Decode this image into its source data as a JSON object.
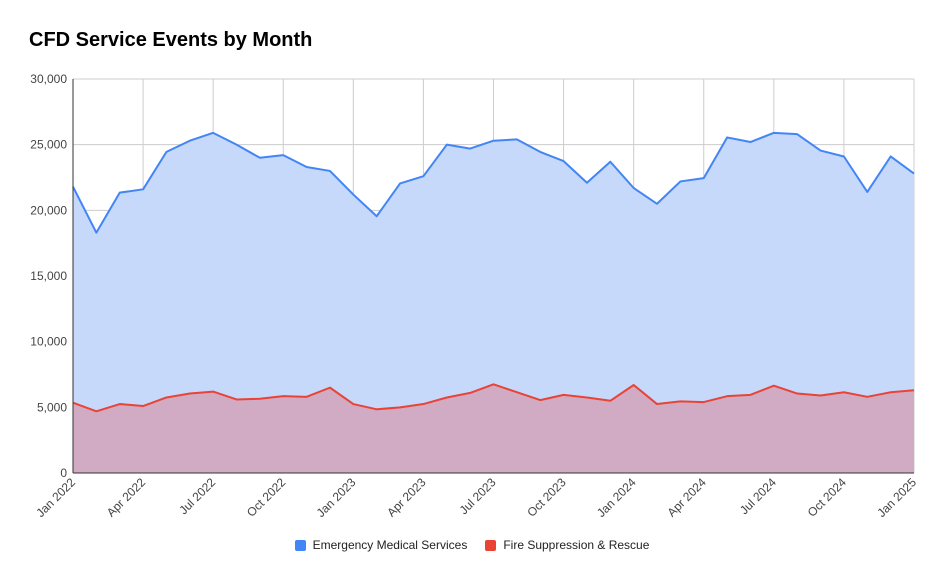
{
  "chart_data": {
    "type": "area",
    "title": "CFD Service Events by Month",
    "xlabel": "",
    "ylabel": "",
    "ylim": [
      0,
      30000
    ],
    "yticks": [
      0,
      5000,
      10000,
      15000,
      20000,
      25000,
      30000
    ],
    "ytick_labels": [
      "0",
      "5,000",
      "10,000",
      "15,000",
      "20,000",
      "25,000",
      "30,000"
    ],
    "x": [
      "Jan 2022",
      "Feb 2022",
      "Mar 2022",
      "Apr 2022",
      "May 2022",
      "Jun 2022",
      "Jul 2022",
      "Aug 2022",
      "Sep 2022",
      "Oct 2022",
      "Nov 2022",
      "Dec 2022",
      "Jan 2023",
      "Feb 2023",
      "Mar 2023",
      "Apr 2023",
      "May 2023",
      "Jun 2023",
      "Jul 2023",
      "Aug 2023",
      "Sep 2023",
      "Oct 2023",
      "Nov 2023",
      "Dec 2023",
      "Jan 2024",
      "Feb 2024",
      "Mar 2024",
      "Apr 2024",
      "May 2024",
      "Jun 2024",
      "Jul 2024",
      "Aug 2024",
      "Sep 2024",
      "Oct 2024",
      "Nov 2024",
      "Dec 2024",
      "Jan 2025"
    ],
    "xtick_labels": [
      "Jan 2022",
      "Apr 2022",
      "Jul 2022",
      "Oct 2022",
      "Jan 2023",
      "Apr 2023",
      "Jul 2023",
      "Oct 2023",
      "Jan 2024",
      "Apr 2024",
      "Jul 2024",
      "Oct 2024",
      "Jan 2025"
    ],
    "grid": true,
    "legend_position": "bottom",
    "series": [
      {
        "name": "Emergency Medical Services",
        "color": "#4285f4",
        "fill": "#c6d9fb",
        "values": [
          21800,
          18300,
          21350,
          21600,
          24450,
          25300,
          25900,
          25000,
          24000,
          24200,
          23300,
          23000,
          21200,
          19550,
          22050,
          22600,
          25000,
          24700,
          25300,
          25400,
          24450,
          23750,
          22100,
          23700,
          21700,
          20500,
          22200,
          22450,
          25550,
          25200,
          25900,
          25800,
          24550,
          24100,
          21400,
          24100,
          22800
        ]
      },
      {
        "name": "Fire Suppression & Rescue",
        "color": "#ea4335",
        "fill": "#d1a9c0",
        "values": [
          5350,
          4700,
          5250,
          5100,
          5750,
          6050,
          6200,
          5600,
          5650,
          5850,
          5800,
          6500,
          5250,
          4850,
          5000,
          5250,
          5750,
          6100,
          6750,
          6150,
          5550,
          5950,
          5750,
          5500,
          6700,
          5250,
          5450,
          5400,
          5850,
          5950,
          6650,
          6050,
          5900,
          6150,
          5800,
          6150,
          6300
        ]
      }
    ]
  }
}
